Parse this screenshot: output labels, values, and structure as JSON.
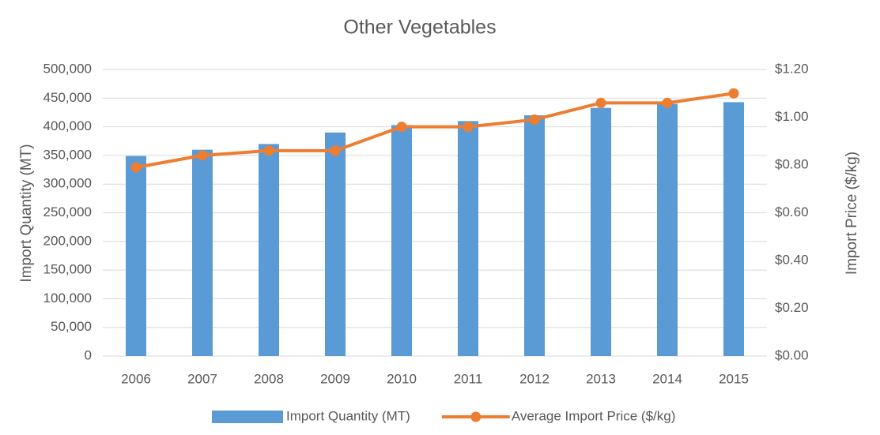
{
  "chart_data": {
    "type": "bar-line",
    "title": "Other Vegetables",
    "categories": [
      "2006",
      "2007",
      "2008",
      "2009",
      "2010",
      "2011",
      "2012",
      "2013",
      "2014",
      "2015"
    ],
    "series": [
      {
        "name": "Import Quantity (MT)",
        "type": "bar",
        "color": "#5b9bd5",
        "values": [
          349000,
          360000,
          370000,
          390000,
          403000,
          410000,
          420000,
          433000,
          440000,
          443000
        ]
      },
      {
        "name": "Average Import Price ($/kg)",
        "type": "line",
        "axis": "y2",
        "color": "#ed7d31",
        "values": [
          0.79,
          0.84,
          0.86,
          0.86,
          0.96,
          0.96,
          0.99,
          1.06,
          1.06,
          1.1
        ]
      }
    ],
    "ylabel": "Import Quantity (MT)",
    "y2label": "Import Price ($/kg)",
    "ylim": [
      0,
      500000
    ],
    "yticks": [
      0,
      {
        "value": 50000,
        "label": "50,000"
      },
      {
        "value": 100000,
        "label": "100,000"
      },
      {
        "value": 150000,
        "label": "150,000"
      },
      {
        "value": 200000,
        "label": "200,000"
      },
      {
        "value": 250000,
        "label": "250,000"
      },
      {
        "value": 300000,
        "label": "300,000"
      },
      {
        "value": 350000,
        "label": "350,000"
      },
      {
        "value": 400000,
        "label": "400,000"
      },
      {
        "value": 450000,
        "label": "450,000"
      },
      {
        "value": 500000,
        "label": "500,000"
      }
    ],
    "y2lim": [
      0,
      1.2
    ],
    "y2ticks": [
      {
        "value": 0,
        "label": "$0.00"
      },
      {
        "value": 0.2,
        "label": "$0.20"
      },
      {
        "value": 0.4,
        "label": "$0.40"
      },
      {
        "value": 0.6,
        "label": "$0.60"
      },
      {
        "value": 0.8,
        "label": "$0.80"
      },
      {
        "value": 1.0,
        "label": "$1.00"
      },
      {
        "value": 1.2,
        "label": "$1.20"
      }
    ],
    "grid": true,
    "legend": "bottom"
  }
}
